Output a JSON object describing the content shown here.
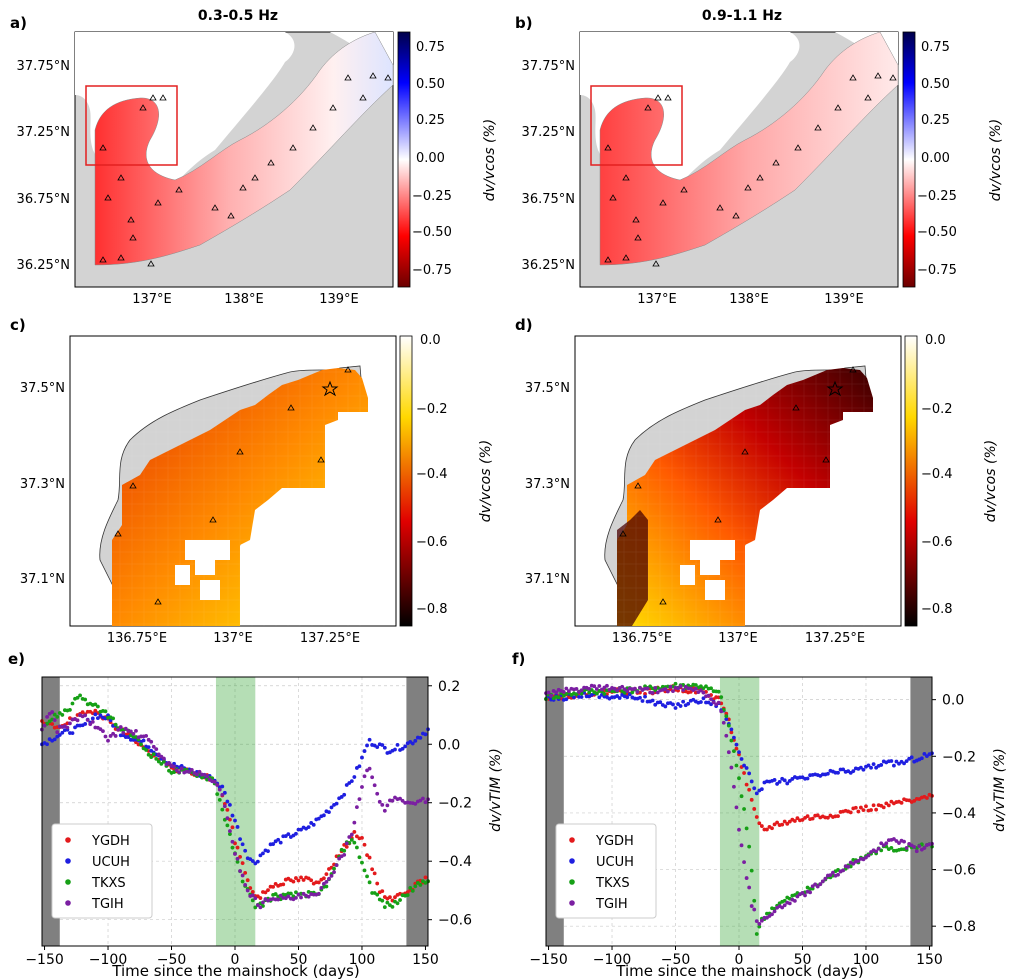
{
  "panel_labels": [
    "a)",
    "b)",
    "c)",
    "d)",
    "e)",
    "f)"
  ],
  "chart_data": [
    {
      "id": "a",
      "type": "heatmap",
      "title": "0.3-0.5 Hz",
      "xticks": [
        "137°E",
        "138°E",
        "139°E"
      ],
      "yticks": [
        "37.75°N",
        "37.25°N",
        "36.75°N",
        "36.25°N"
      ],
      "colorbar": {
        "label": "dv/vcos (%)",
        "ticks": [
          "0.75",
          "0.50",
          "0.25",
          "0.00",
          "−0.25",
          "−0.50",
          "−0.75"
        ],
        "range": [
          -0.85,
          0.85
        ],
        "colormap": "seismic_r"
      },
      "inset_box": true
    },
    {
      "id": "b",
      "type": "heatmap",
      "title": "0.9-1.1 Hz",
      "xticks": [
        "137°E",
        "138°E",
        "139°E"
      ],
      "yticks": [
        "37.75°N",
        "37.25°N",
        "36.75°N",
        "36.25°N"
      ],
      "colorbar": {
        "label": "dv/vcos (%)",
        "ticks": [
          "0.75",
          "0.50",
          "0.25",
          "0.00",
          "−0.25",
          "−0.50",
          "−0.75"
        ],
        "range": [
          -0.85,
          0.85
        ],
        "colormap": "seismic_r"
      },
      "inset_box": true
    },
    {
      "id": "c",
      "type": "heatmap",
      "xticks": [
        "136.75°E",
        "137°E",
        "137.25°E"
      ],
      "yticks": [
        "37.5°N",
        "37.3°N",
        "37.1°N"
      ],
      "colorbar": {
        "label": "dv/vcos (%)",
        "ticks": [
          "0.0",
          "−0.2",
          "−0.4",
          "−0.6",
          "−0.8"
        ],
        "range": [
          -0.85,
          0.0
        ],
        "colormap": "hot"
      }
    },
    {
      "id": "d",
      "type": "heatmap",
      "xticks": [
        "136.75°E",
        "137°E",
        "137.25°E"
      ],
      "yticks": [
        "37.5°N",
        "37.3°N",
        "37.1°N"
      ],
      "colorbar": {
        "label": "dv/vcos (%)",
        "ticks": [
          "0.0",
          "−0.2",
          "−0.4",
          "−0.6",
          "−0.8"
        ],
        "range": [
          -0.85,
          0.0
        ],
        "colormap": "hot"
      }
    },
    {
      "id": "e",
      "type": "scatter",
      "xlabel": "Time since the mainshock (days)",
      "ylabel": "dv/vTIM (%)",
      "xlim": [
        -152,
        152
      ],
      "ylim": [
        -0.69,
        0.23
      ],
      "xticks": [
        "−150",
        "−100",
        "−50",
        "0",
        "50",
        "100",
        "150"
      ],
      "yticks": [
        "0.2",
        "0.0",
        "−0.2",
        "−0.4",
        "−0.6"
      ],
      "ytick_values": [
        0.2,
        0.0,
        -0.2,
        -0.4,
        -0.6
      ],
      "shaded": {
        "gray": [
          [
            -152,
            -138
          ],
          [
            135,
            152
          ]
        ],
        "green": [
          -15,
          16
        ]
      },
      "series": [
        {
          "name": "YGDH",
          "color": "#e31a1c",
          "points": [
            [
              -152,
              0.07
            ],
            [
              -140,
              0.06
            ],
            [
              -120,
              0.1
            ],
            [
              -110,
              0.12
            ],
            [
              -100,
              0.08
            ],
            [
              -90,
              0.05
            ],
            [
              -80,
              0.02
            ],
            [
              -70,
              -0.02
            ],
            [
              -50,
              -0.08
            ],
            [
              -30,
              -0.1
            ],
            [
              -17,
              -0.12
            ],
            [
              -10,
              -0.17
            ],
            [
              -5,
              -0.24
            ],
            [
              0,
              -0.33
            ],
            [
              5,
              -0.4
            ],
            [
              10,
              -0.46
            ],
            [
              15,
              -0.52
            ],
            [
              20,
              -0.52
            ],
            [
              30,
              -0.48
            ],
            [
              40,
              -0.47
            ],
            [
              55,
              -0.46
            ],
            [
              65,
              -0.48
            ],
            [
              75,
              -0.42
            ],
            [
              85,
              -0.36
            ],
            [
              95,
              -0.3
            ],
            [
              100,
              -0.33
            ],
            [
              108,
              -0.42
            ],
            [
              115,
              -0.51
            ],
            [
              125,
              -0.53
            ],
            [
              135,
              -0.5
            ],
            [
              152,
              -0.46
            ]
          ]
        },
        {
          "name": "UCUH",
          "color": "#1f1fe0",
          "points": [
            [
              -152,
              0.0
            ],
            [
              -140,
              0.03
            ],
            [
              -120,
              0.06
            ],
            [
              -110,
              0.1
            ],
            [
              -100,
              0.09
            ],
            [
              -90,
              0.04
            ],
            [
              -70,
              0.0
            ],
            [
              -50,
              -0.07
            ],
            [
              -30,
              -0.1
            ],
            [
              -17,
              -0.12
            ],
            [
              -10,
              -0.15
            ],
            [
              -5,
              -0.2
            ],
            [
              0,
              -0.26
            ],
            [
              5,
              -0.33
            ],
            [
              10,
              -0.38
            ],
            [
              15,
              -0.41
            ],
            [
              20,
              -0.38
            ],
            [
              30,
              -0.34
            ],
            [
              40,
              -0.32
            ],
            [
              55,
              -0.29
            ],
            [
              65,
              -0.26
            ],
            [
              75,
              -0.22
            ],
            [
              85,
              -0.17
            ],
            [
              95,
              -0.1
            ],
            [
              100,
              -0.05
            ],
            [
              105,
              0.01
            ],
            [
              112,
              0.0
            ],
            [
              120,
              -0.02
            ],
            [
              130,
              -0.01
            ],
            [
              140,
              0.01
            ],
            [
              152,
              0.05
            ]
          ]
        },
        {
          "name": "TKXS",
          "color": "#16a016",
          "points": [
            [
              -152,
              0.06
            ],
            [
              -140,
              0.1
            ],
            [
              -130,
              0.12
            ],
            [
              -125,
              0.17
            ],
            [
              -115,
              0.14
            ],
            [
              -100,
              0.1
            ],
            [
              -90,
              0.05
            ],
            [
              -80,
              0.03
            ],
            [
              -70,
              -0.02
            ],
            [
              -50,
              -0.09
            ],
            [
              -30,
              -0.1
            ],
            [
              -17,
              -0.12
            ],
            [
              -10,
              -0.22
            ],
            [
              -5,
              -0.3
            ],
            [
              0,
              -0.38
            ],
            [
              5,
              -0.45
            ],
            [
              10,
              -0.5
            ],
            [
              15,
              -0.55
            ],
            [
              20,
              -0.55
            ],
            [
              30,
              -0.52
            ],
            [
              40,
              -0.52
            ],
            [
              55,
              -0.51
            ],
            [
              65,
              -0.52
            ],
            [
              75,
              -0.46
            ],
            [
              85,
              -0.36
            ],
            [
              92,
              -0.32
            ],
            [
              98,
              -0.38
            ],
            [
              108,
              -0.5
            ],
            [
              118,
              -0.55
            ],
            [
              125,
              -0.55
            ],
            [
              135,
              -0.51
            ],
            [
              152,
              -0.46
            ]
          ]
        },
        {
          "name": "TGIH",
          "color": "#7b1fa2",
          "points": [
            [
              -152,
              0.05
            ],
            [
              -145,
              0.12
            ],
            [
              -140,
              0.05
            ],
            [
              -130,
              0.07
            ],
            [
              -120,
              0.1
            ],
            [
              -110,
              0.06
            ],
            [
              -100,
              0.02
            ],
            [
              -90,
              0.05
            ],
            [
              -80,
              0.04
            ],
            [
              -70,
              0.02
            ],
            [
              -50,
              -0.08
            ],
            [
              -30,
              -0.1
            ],
            [
              -17,
              -0.12
            ],
            [
              -10,
              -0.18
            ],
            [
              -5,
              -0.27
            ],
            [
              0,
              -0.37
            ],
            [
              5,
              -0.44
            ],
            [
              10,
              -0.5
            ],
            [
              15,
              -0.53
            ],
            [
              20,
              -0.55
            ],
            [
              30,
              -0.52
            ],
            [
              40,
              -0.53
            ],
            [
              55,
              -0.52
            ],
            [
              65,
              -0.52
            ],
            [
              75,
              -0.45
            ],
            [
              85,
              -0.38
            ],
            [
              92,
              -0.3
            ],
            [
              97,
              -0.2
            ],
            [
              102,
              -0.1
            ],
            [
              107,
              -0.08
            ],
            [
              110,
              -0.15
            ],
            [
              118,
              -0.23
            ],
            [
              125,
              -0.18
            ],
            [
              135,
              -0.2
            ],
            [
              152,
              -0.19
            ]
          ]
        }
      ]
    },
    {
      "id": "f",
      "type": "scatter",
      "xlabel": "Time since the mainshock (days)",
      "ylabel": "dv/vTIM (%)",
      "xlim": [
        -152,
        152
      ],
      "ylim": [
        -0.87,
        0.08
      ],
      "xticks": [
        "−150",
        "−100",
        "−50",
        "0",
        "50",
        "100",
        "150"
      ],
      "yticks": [
        "0.0",
        "−0.2",
        "−0.4",
        "−0.6",
        "−0.8"
      ],
      "ytick_values": [
        0.0,
        -0.2,
        -0.4,
        -0.6,
        -0.8
      ],
      "shaded": {
        "gray": [
          [
            -152,
            -138
          ],
          [
            135,
            152
          ]
        ],
        "green": [
          -15,
          16
        ]
      },
      "series": [
        {
          "name": "YGDH",
          "color": "#e31a1c",
          "points": [
            [
              -152,
              0.01
            ],
            [
              -120,
              0.02
            ],
            [
              -100,
              0.03
            ],
            [
              -70,
              0.03
            ],
            [
              -50,
              0.04
            ],
            [
              -30,
              0.03
            ],
            [
              -15,
              0.0
            ],
            [
              -10,
              -0.05
            ],
            [
              -5,
              -0.12
            ],
            [
              0,
              -0.2
            ],
            [
              5,
              -0.28
            ],
            [
              10,
              -0.36
            ],
            [
              15,
              -0.44
            ],
            [
              20,
              -0.46
            ],
            [
              30,
              -0.44
            ],
            [
              50,
              -0.42
            ],
            [
              70,
              -0.41
            ],
            [
              90,
              -0.39
            ],
            [
              110,
              -0.38
            ],
            [
              130,
              -0.36
            ],
            [
              140,
              -0.36
            ],
            [
              152,
              -0.33
            ]
          ]
        },
        {
          "name": "UCUH",
          "color": "#1f1fe0",
          "points": [
            [
              -152,
              0.0
            ],
            [
              -120,
              0.02
            ],
            [
              -100,
              0.01
            ],
            [
              -80,
              0.01
            ],
            [
              -60,
              -0.02
            ],
            [
              -50,
              -0.02
            ],
            [
              -40,
              -0.01
            ],
            [
              -30,
              0.0
            ],
            [
              -15,
              -0.02
            ],
            [
              -10,
              -0.06
            ],
            [
              -5,
              -0.12
            ],
            [
              0,
              -0.18
            ],
            [
              5,
              -0.24
            ],
            [
              10,
              -0.29
            ],
            [
              15,
              -0.33
            ],
            [
              20,
              -0.3
            ],
            [
              30,
              -0.29
            ],
            [
              50,
              -0.28
            ],
            [
              70,
              -0.26
            ],
            [
              90,
              -0.25
            ],
            [
              110,
              -0.23
            ],
            [
              130,
              -0.22
            ],
            [
              152,
              -0.19
            ]
          ]
        },
        {
          "name": "TKXS",
          "color": "#16a016",
          "points": [
            [
              -152,
              0.01
            ],
            [
              -120,
              0.03
            ],
            [
              -100,
              0.03
            ],
            [
              -70,
              0.04
            ],
            [
              -50,
              0.05
            ],
            [
              -30,
              0.05
            ],
            [
              -15,
              0.02
            ],
            [
              -10,
              -0.06
            ],
            [
              -5,
              -0.16
            ],
            [
              0,
              -0.28
            ],
            [
              5,
              -0.42
            ],
            [
              10,
              -0.6
            ],
            [
              14,
              -0.82
            ],
            [
              18,
              -0.78
            ],
            [
              25,
              -0.74
            ],
            [
              40,
              -0.7
            ],
            [
              60,
              -0.66
            ],
            [
              80,
              -0.6
            ],
            [
              100,
              -0.55
            ],
            [
              115,
              -0.52
            ],
            [
              125,
              -0.54
            ],
            [
              135,
              -0.52
            ],
            [
              152,
              -0.51
            ]
          ]
        },
        {
          "name": "TGIH",
          "color": "#7b1fa2",
          "points": [
            [
              -152,
              0.02
            ],
            [
              -120,
              0.04
            ],
            [
              -100,
              0.04
            ],
            [
              -70,
              0.03
            ],
            [
              -50,
              0.04
            ],
            [
              -30,
              0.03
            ],
            [
              -15,
              -0.02
            ],
            [
              -10,
              -0.12
            ],
            [
              -5,
              -0.28
            ],
            [
              0,
              -0.45
            ],
            [
              5,
              -0.6
            ],
            [
              10,
              -0.72
            ],
            [
              15,
              -0.79
            ],
            [
              20,
              -0.77
            ],
            [
              30,
              -0.74
            ],
            [
              50,
              -0.69
            ],
            [
              70,
              -0.63
            ],
            [
              90,
              -0.58
            ],
            [
              110,
              -0.52
            ],
            [
              120,
              -0.5
            ],
            [
              130,
              -0.51
            ],
            [
              140,
              -0.53
            ],
            [
              152,
              -0.51
            ]
          ]
        }
      ]
    }
  ]
}
